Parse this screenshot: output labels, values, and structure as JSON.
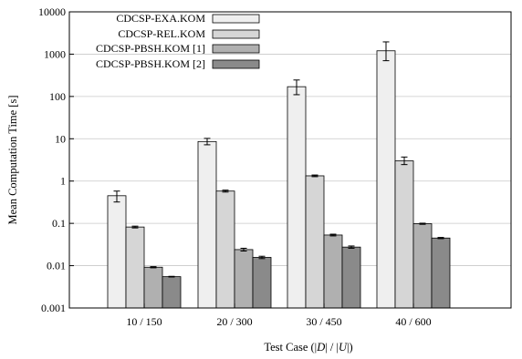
{
  "chart_data": {
    "type": "bar",
    "yscale": "log",
    "ylim": [
      0.001,
      10000
    ],
    "yticks": [
      "0.001",
      "0.01",
      "0.1",
      "1",
      "10",
      "100",
      "1000",
      "10000"
    ],
    "ylabel": "Mean Computation Time [s]",
    "xlabel_parts": [
      "Test Case (|",
      "D",
      "| / |",
      "U",
      "|)"
    ],
    "categories": [
      "10 / 150",
      "20 / 300",
      "30 / 450",
      "40 / 600"
    ],
    "grid": true,
    "legend_position": "top-left",
    "series": [
      {
        "name": "CDCSP-EXA.KOM",
        "color": "#efefef",
        "values": [
          0.45,
          8.6,
          170,
          1200
        ],
        "err_low": [
          0.32,
          7.2,
          110,
          700
        ],
        "err_high": [
          0.58,
          10.2,
          245,
          1950
        ]
      },
      {
        "name": "CDCSP-REL.KOM",
        "color": "#d6d6d6",
        "values": [
          0.082,
          0.58,
          1.33,
          3.0
        ],
        "err_low": [
          0.078,
          0.55,
          1.27,
          2.45
        ],
        "err_high": [
          0.086,
          0.61,
          1.39,
          3.7
        ]
      },
      {
        "name": "CDCSP-PBSH.KOM [1]",
        "color": "#b0b0b0",
        "values": [
          0.0092,
          0.024,
          0.053,
          0.098
        ],
        "err_low": [
          0.0089,
          0.0222,
          0.0505,
          0.095
        ],
        "err_high": [
          0.0095,
          0.0258,
          0.0555,
          0.101
        ]
      },
      {
        "name": "CDCSP-PBSH.KOM [2]",
        "color": "#8a8a8a",
        "values": [
          0.0055,
          0.0157,
          0.0275,
          0.045
        ],
        "err_low": [
          0.0054,
          0.0147,
          0.0258,
          0.0435
        ],
        "err_high": [
          0.0056,
          0.0167,
          0.0292,
          0.0465
        ]
      }
    ]
  }
}
